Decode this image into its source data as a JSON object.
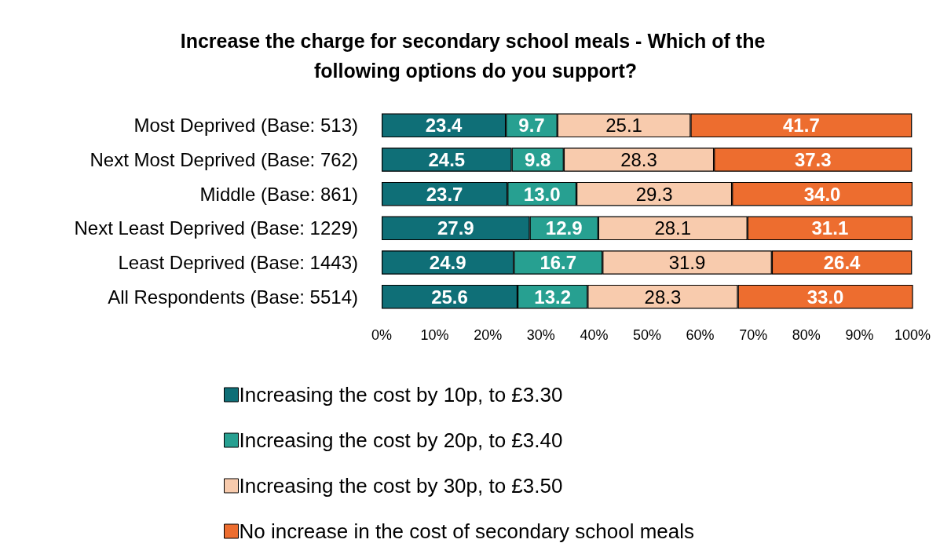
{
  "chart_data": {
    "type": "bar",
    "title": "Increase the charge for secondary school meals - Which of the following options do you support?",
    "categories": [
      "Most Deprived (Base: 513)",
      "Next Most Deprived (Base: 762)",
      "Middle (Base: 861)",
      "Next Least Deprived (Base: 1229)",
      "Least Deprived (Base: 1443)",
      "All Respondents (Base: 5514)"
    ],
    "orientation": "horizontal",
    "stacked": true,
    "legend": "bottom",
    "grid": false,
    "xlim": [
      0,
      100
    ],
    "xticks": [
      {
        "value": 0,
        "label": "0%"
      },
      {
        "value": 10,
        "label": "10%"
      },
      {
        "value": 20,
        "label": "20%"
      },
      {
        "value": 30,
        "label": "30%"
      },
      {
        "value": 40,
        "label": "40%"
      },
      {
        "value": 50,
        "label": "50%"
      },
      {
        "value": 60,
        "label": "60%"
      },
      {
        "value": 70,
        "label": "70%"
      },
      {
        "value": 80,
        "label": "80%"
      },
      {
        "value": 90,
        "label": "90%"
      },
      {
        "value": 100,
        "label": "100%"
      }
    ],
    "series": [
      {
        "name": "Increasing the cost by 10p, to £3.30",
        "color": "#0f6f77",
        "values": [
          23.4,
          24.5,
          23.7,
          27.9,
          24.9,
          25.6
        ],
        "value_labels": [
          "23.4",
          "24.5",
          "23.7",
          "27.9",
          "24.9",
          "25.6"
        ]
      },
      {
        "name": "Increasing the cost by 20p, to £3.40",
        "color": "#27a091",
        "values": [
          9.7,
          9.8,
          13.0,
          12.9,
          16.7,
          13.2
        ],
        "value_labels": [
          "9.7",
          "9.8",
          "13.0",
          "12.9",
          "16.7",
          "13.2"
        ]
      },
      {
        "name": "Increasing the cost by 30p, to £3.50",
        "color": "#f8cbad",
        "values": [
          25.1,
          28.3,
          29.3,
          28.1,
          31.9,
          28.3
        ],
        "value_labels": [
          "25.1",
          "28.3",
          "29.3",
          "28.1",
          "31.9",
          "28.3"
        ]
      },
      {
        "name": "No increase in the cost of secondary school meals",
        "color": "#ed6d2f",
        "values": [
          41.7,
          37.3,
          34.0,
          31.1,
          26.4,
          33.0
        ],
        "value_labels": [
          "41.7",
          "37.3",
          "34.0",
          "31.1",
          "26.4",
          "33.0"
        ]
      }
    ]
  }
}
